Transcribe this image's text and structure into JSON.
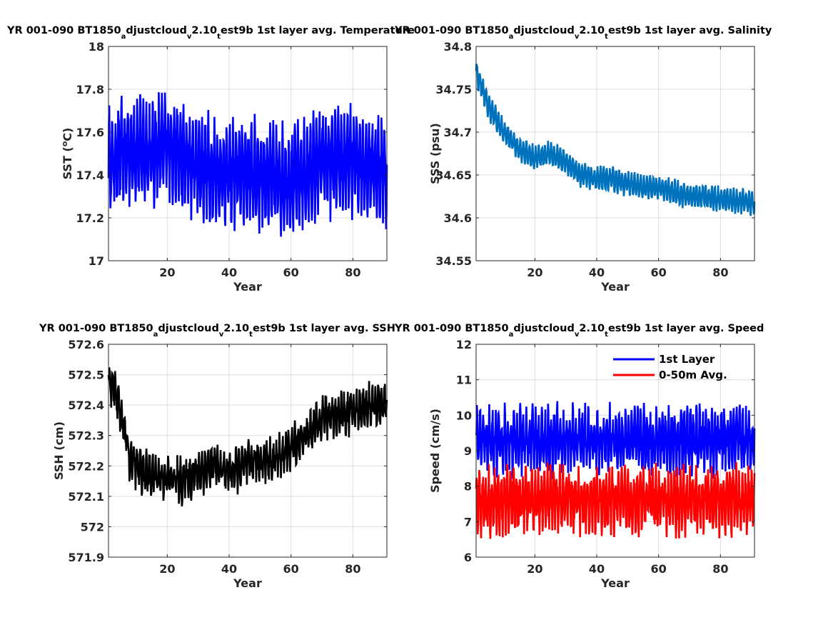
{
  "chart_data": [
    {
      "type": "line",
      "title": {
        "a": "YR 001-090 BT1850",
        "b": "a",
        "c": "djustcloud",
        "d": "v",
        "e": "2.10",
        "f": "t",
        "g": "est9b 1st layer avg. Temperature"
      },
      "xlabel": "Year",
      "ylabel": "SST (",
      "ylabel_deg": "o",
      "ylabel_end": "C)",
      "xlim": [
        1,
        91
      ],
      "ylim": [
        17,
        18
      ],
      "xticks": [
        20,
        40,
        60,
        80
      ],
      "yticks": [
        17,
        17.2,
        17.4,
        17.6,
        17.8,
        18
      ],
      "ytick_labels": [
        "17",
        "17.2",
        "17.4",
        "17.6",
        "17.8",
        "18"
      ],
      "grid": true,
      "series": [
        {
          "color": "#0000ff",
          "mean": 17.45,
          "amp": 0.2,
          "noise": 0.08,
          "x": [
            1,
            5,
            10,
            15,
            20,
            25,
            30,
            35,
            40,
            45,
            50,
            55,
            60,
            65,
            70,
            75,
            80,
            85,
            90
          ],
          "y": [
            17.45,
            17.5,
            17.52,
            17.5,
            17.55,
            17.47,
            17.45,
            17.42,
            17.4,
            17.42,
            17.4,
            17.38,
            17.38,
            17.4,
            17.47,
            17.45,
            17.47,
            17.45,
            17.42
          ]
        }
      ]
    },
    {
      "type": "line",
      "title": {
        "a": "YR 001-090 BT1850",
        "b": "a",
        "c": "djustcloud",
        "d": "v",
        "e": "2.10",
        "f": "t",
        "g": "est9b 1st layer avg. Salinity"
      },
      "xlabel": "Year",
      "ylabel": "SSS (psu)",
      "xlim": [
        1,
        91
      ],
      "ylim": [
        34.55,
        34.8
      ],
      "xticks": [
        20,
        40,
        60,
        80
      ],
      "yticks": [
        34.55,
        34.6,
        34.65,
        34.7,
        34.75,
        34.8
      ],
      "ytick_labels": [
        "34.55",
        "34.6",
        "34.65",
        "34.7",
        "34.75",
        "34.8"
      ],
      "grid": true,
      "series": [
        {
          "color": "#0072bd",
          "mean": 0,
          "amp": 0.012,
          "noise": 0.004,
          "x": [
            1,
            5,
            10,
            15,
            20,
            25,
            30,
            35,
            40,
            45,
            50,
            55,
            60,
            65,
            70,
            75,
            80,
            85,
            90
          ],
          "y": [
            34.77,
            34.73,
            34.7,
            34.68,
            34.67,
            34.675,
            34.665,
            34.65,
            34.645,
            34.645,
            34.64,
            34.635,
            34.635,
            34.63,
            34.625,
            34.625,
            34.622,
            34.62,
            34.618
          ]
        }
      ]
    },
    {
      "type": "line",
      "title": {
        "a": "YR 001-090 BT1850",
        "b": "a",
        "c": "djustcloud",
        "d": "v",
        "e": "2.10",
        "f": "t",
        "g": "est9b 1st layer avg. SSH"
      },
      "xlabel": "Year",
      "ylabel": "SSH (cm)",
      "xlim": [
        1,
        91
      ],
      "ylim": [
        571.9,
        572.6
      ],
      "xticks": [
        20,
        40,
        60,
        80
      ],
      "yticks": [
        571.9,
        572,
        572.1,
        572.2,
        572.3,
        572.4,
        572.5,
        572.6
      ],
      "ytick_labels": [
        "571.9",
        "572",
        "572.1",
        "572.2",
        "572.3",
        "572.4",
        "572.5",
        "572.6"
      ],
      "grid": true,
      "series": [
        {
          "color": "#000000",
          "mean": 0,
          "amp": 0.05,
          "noise": 0.035,
          "x": [
            1,
            3,
            5,
            8,
            12,
            16,
            20,
            25,
            30,
            35,
            40,
            45,
            50,
            55,
            60,
            65,
            70,
            75,
            80,
            85,
            90
          ],
          "y": [
            572.47,
            572.45,
            572.38,
            572.22,
            572.18,
            572.17,
            572.16,
            572.15,
            572.18,
            572.2,
            572.18,
            572.2,
            572.22,
            572.22,
            572.26,
            572.3,
            572.36,
            572.37,
            572.38,
            572.4,
            572.4
          ]
        }
      ]
    },
    {
      "type": "line",
      "title": {
        "a": "YR 001-090 BT1850",
        "b": "a",
        "c": "djustcloud",
        "d": "v",
        "e": "2.10",
        "f": "t",
        "g": "est9b 1st layer avg. Speed"
      },
      "xlabel": "Year",
      "ylabel": "Speed (cm/s)",
      "xlim": [
        1,
        91
      ],
      "ylim": [
        6,
        12
      ],
      "xticks": [
        20,
        40,
        60,
        80
      ],
      "yticks": [
        6,
        7,
        8,
        9,
        10,
        11,
        12
      ],
      "ytick_labels": [
        "6",
        "7",
        "8",
        "9",
        "10",
        "11",
        "12"
      ],
      "grid": true,
      "legend": "top-right",
      "series": [
        {
          "name": "1st Layer",
          "color": "#0000ff",
          "mean": 0,
          "amp": 0.7,
          "noise": 0.4,
          "x": [
            1,
            90
          ],
          "y": [
            9.3,
            9.3
          ]
        },
        {
          "name": "0-50m Avg.",
          "color": "#ff0000",
          "mean": 0,
          "amp": 0.7,
          "noise": 0.4,
          "x": [
            1,
            90
          ],
          "y": [
            7.6,
            7.6
          ]
        }
      ]
    }
  ]
}
